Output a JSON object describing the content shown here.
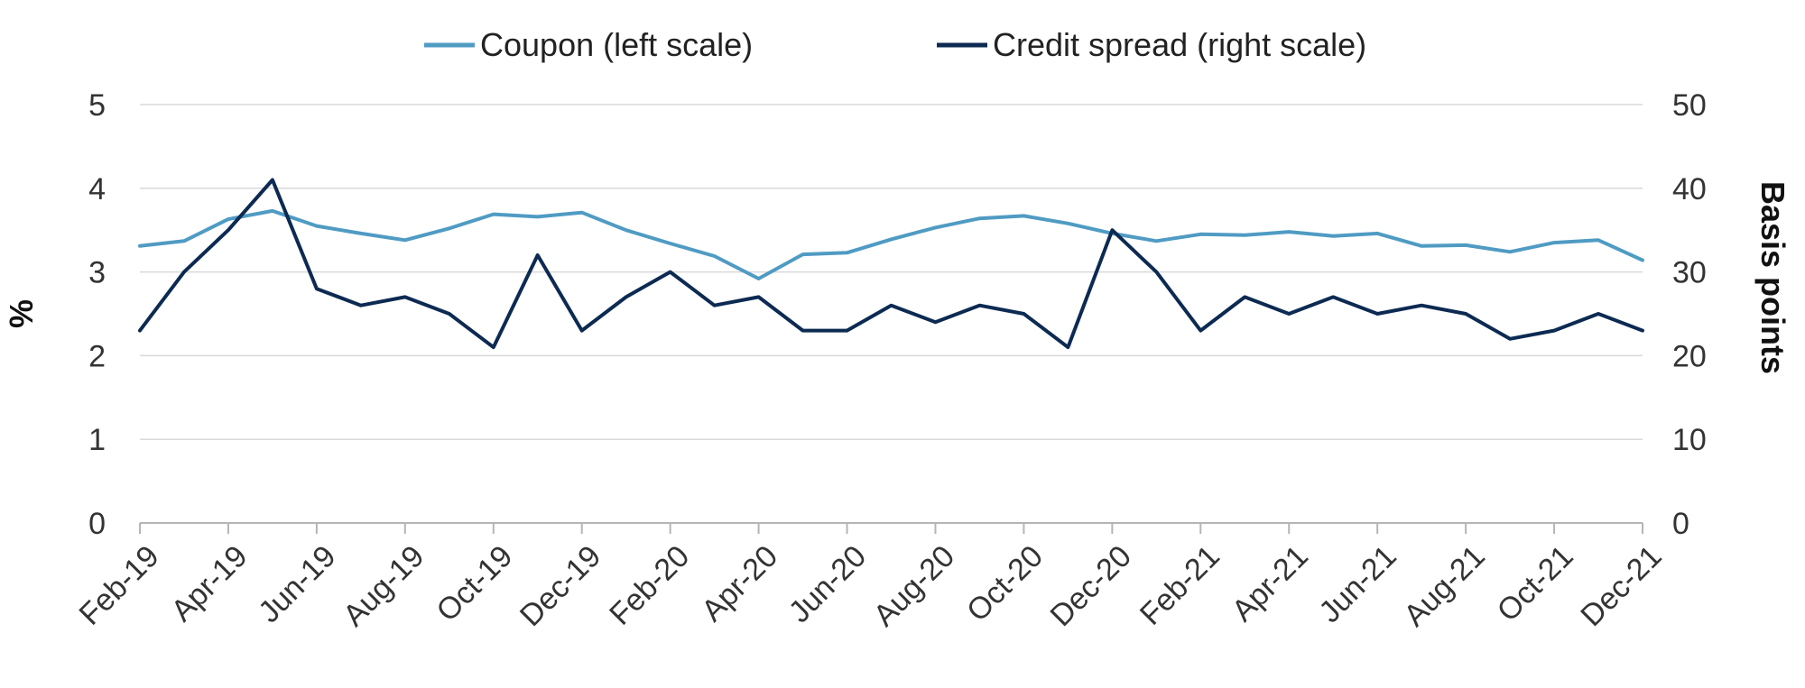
{
  "chart_data": {
    "type": "line",
    "x": [
      "Feb-19",
      "Mar-19",
      "Apr-19",
      "May-19",
      "Jun-19",
      "Jul-19",
      "Aug-19",
      "Sep-19",
      "Oct-19",
      "Nov-19",
      "Dec-19",
      "Jan-20",
      "Feb-20",
      "Mar-20",
      "Apr-20",
      "May-20",
      "Jun-20",
      "Jul-20",
      "Aug-20",
      "Sep-20",
      "Oct-20",
      "Nov-20",
      "Dec-20",
      "Jan-21",
      "Feb-21",
      "Mar-21",
      "Apr-21",
      "May-21",
      "Jun-21",
      "Jul-21",
      "Aug-21",
      "Sep-21",
      "Oct-21",
      "Nov-21",
      "Dec-21"
    ],
    "x_tick_labels": [
      "Feb-19",
      "Apr-19",
      "Jun-19",
      "Aug-19",
      "Oct-19",
      "Dec-19",
      "Feb-20",
      "Apr-20",
      "Jun-20",
      "Aug-20",
      "Oct-20",
      "Dec-20",
      "Feb-21",
      "Apr-21",
      "Jun-21",
      "Aug-21",
      "Oct-21",
      "Dec-21"
    ],
    "series": [
      {
        "name": "Coupon (left scale)",
        "axis": "left",
        "color": "#4f9bc3",
        "values": [
          3.31,
          3.37,
          3.63,
          3.73,
          3.55,
          3.46,
          3.38,
          3.52,
          3.69,
          3.66,
          3.71,
          3.5,
          3.34,
          3.19,
          2.92,
          3.21,
          3.23,
          3.39,
          3.53,
          3.64,
          3.67,
          3.58,
          3.46,
          3.37,
          3.45,
          3.44,
          3.48,
          3.43,
          3.46,
          3.31,
          3.32,
          3.24,
          3.35,
          3.38,
          3.14
        ]
      },
      {
        "name": "Credit spread (right scale)",
        "axis": "right",
        "color": "#0c2a52",
        "values": [
          23,
          30,
          35,
          41,
          28,
          26,
          27,
          25,
          21,
          32,
          23,
          27,
          30,
          26,
          27,
          23,
          23,
          26,
          24,
          26,
          25,
          21,
          35,
          30,
          23,
          27,
          25,
          27,
          25,
          26,
          25,
          22,
          23,
          25,
          23
        ]
      }
    ],
    "ylabel": "%",
    "ylim": [
      0,
      5
    ],
    "yticks": [
      "0",
      "1",
      "2",
      "3",
      "4",
      "5"
    ],
    "y2label": "Basis points",
    "y2lim": [
      0,
      50
    ],
    "y2ticks": [
      "0",
      "10",
      "20",
      "30",
      "40",
      "50"
    ],
    "grid": true,
    "legend_position": "top-center"
  }
}
